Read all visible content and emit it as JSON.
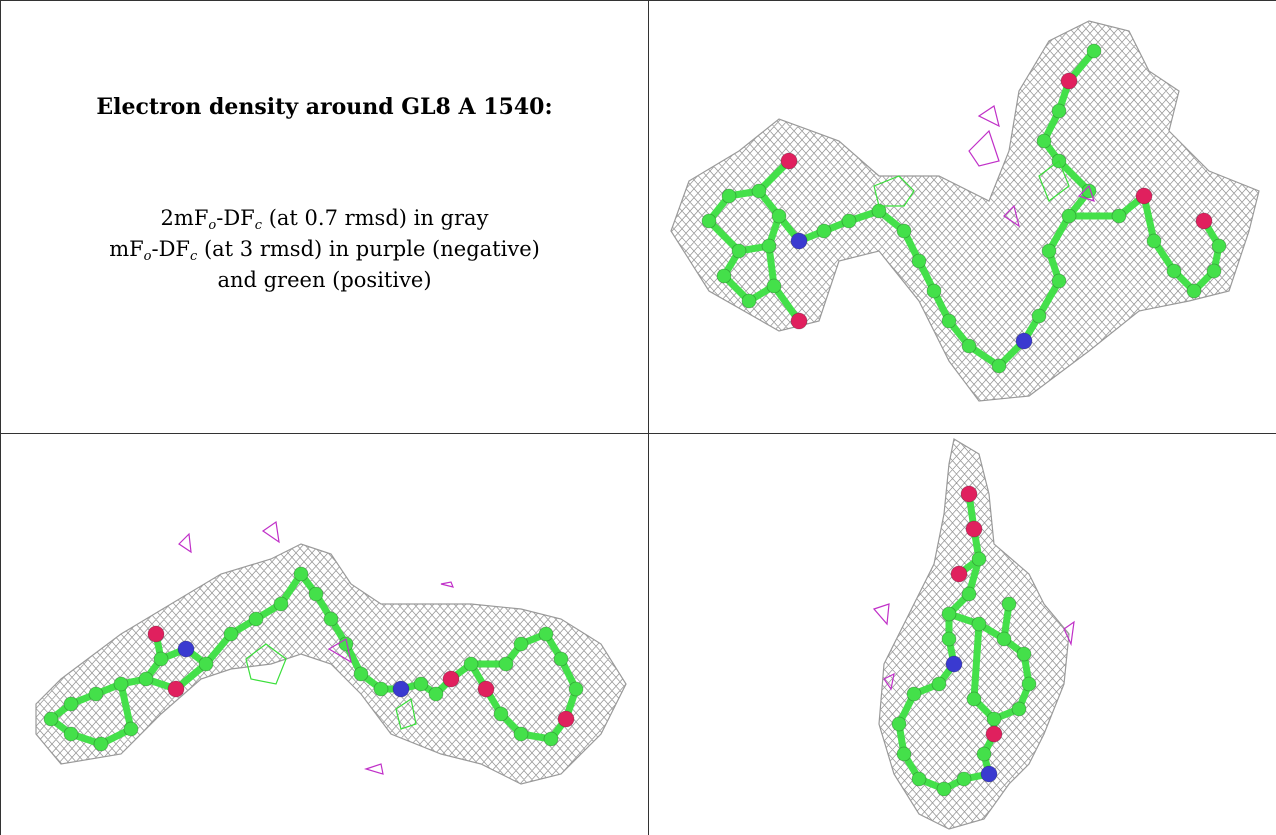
{
  "caption": {
    "title": "Electron density around GL8 A 1540:",
    "line1": {
      "pre": "2mF",
      "sub1": "o",
      "mid": "-DF",
      "sub2": "c",
      "post": " (at 0.7 rmsd) in gray"
    },
    "line2": {
      "pre": "mF",
      "sub1": "o",
      "mid": "-DF",
      "sub2": "c",
      "post": " (at 3 rmsd) in purple (negative)"
    },
    "line3": "and green (positive)"
  },
  "colors": {
    "mesh_gray": "#9a9a9a",
    "carbon_green": "#44e04a",
    "nitrogen_blue": "#3a3ad0",
    "oxygen_red": "#e0205e",
    "negative_purple": "#c030c8",
    "positive_green": "#3adf3a"
  }
}
